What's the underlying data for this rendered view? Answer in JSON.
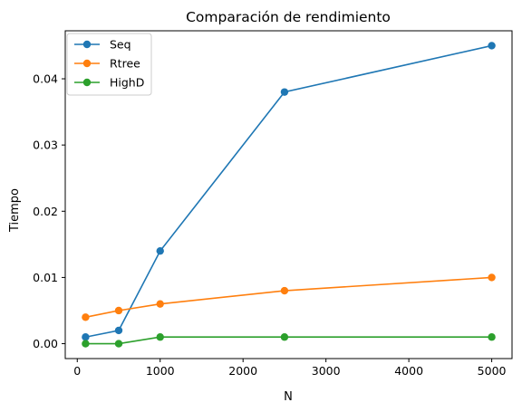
{
  "chart_data": {
    "type": "line",
    "title": "Comparación de rendimiento",
    "xlabel": "N",
    "ylabel": "Tiempo",
    "x": [
      100,
      500,
      1000,
      2500,
      5000
    ],
    "series": [
      {
        "name": "Seq",
        "values": [
          0.001,
          0.002,
          0.014,
          0.038,
          0.045
        ],
        "color": "#1f77b4"
      },
      {
        "name": "Rtree",
        "values": [
          0.004,
          0.005,
          0.006,
          0.008,
          0.01
        ],
        "color": "#ff7f0e"
      },
      {
        "name": "HighD",
        "values": [
          0.0,
          0.0,
          0.001,
          0.001,
          0.001
        ],
        "color": "#2ca02c"
      }
    ],
    "xlim": [
      -145,
      5245
    ],
    "ylim": [
      -0.00225,
      0.04725
    ],
    "xticks": [
      0,
      1000,
      2000,
      3000,
      4000,
      5000
    ],
    "xtick_labels": [
      "0",
      "1000",
      "2000",
      "3000",
      "4000",
      "5000"
    ],
    "yticks": [
      0.0,
      0.01,
      0.02,
      0.03,
      0.04
    ],
    "ytick_labels": [
      "0.00",
      "0.01",
      "0.02",
      "0.03",
      "0.04"
    ],
    "grid": false,
    "legend_position": "top-left",
    "marker": "circle"
  }
}
